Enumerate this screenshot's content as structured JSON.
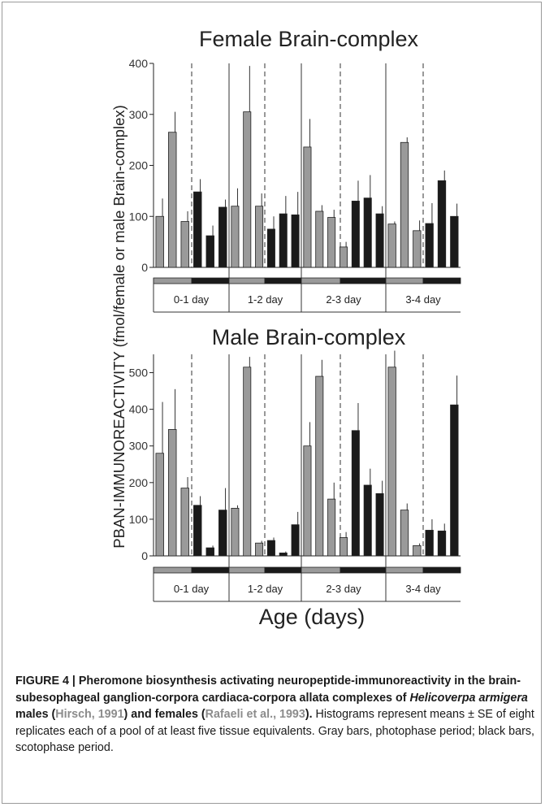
{
  "figure": {
    "y_axis_label": "PBAN-IMMUNOREACTIVITY (fmol/female or male Brain-complex)",
    "x_axis_label": "Age (days)",
    "colors": {
      "photophase": "#9a9a9a",
      "scotophase": "#1a1a1a",
      "axis": "#222222"
    }
  },
  "chart_data": [
    {
      "type": "bar",
      "title": "Female Brain-complex",
      "categories": [
        "0-1 day",
        "1-2 day",
        "2-3 day",
        "3-4 day"
      ],
      "ylim": [
        0,
        400
      ],
      "yticks": [
        0,
        100,
        200,
        300,
        400
      ],
      "values": [
        [
          100,
          265,
          90,
          148,
          62,
          118
        ],
        [
          120,
          305,
          120,
          75,
          105,
          103
        ],
        [
          236,
          110,
          98,
          40,
          130,
          136,
          105
        ],
        [
          85,
          245,
          72,
          86,
          170,
          100
        ]
      ],
      "errors": [
        [
          35,
          40,
          20,
          25,
          20,
          15
        ],
        [
          35,
          90,
          25,
          25,
          35,
          45
        ],
        [
          55,
          12,
          15,
          10,
          40,
          45,
          15
        ],
        [
          5,
          10,
          20,
          40,
          20,
          25
        ]
      ],
      "phase": [
        [
          "light",
          "light",
          "light",
          "dark",
          "dark",
          "dark"
        ],
        [
          "light",
          "light",
          "light",
          "dark",
          "dark",
          "dark"
        ],
        [
          "light",
          "light",
          "light",
          "light",
          "dark",
          "dark",
          "dark"
        ],
        [
          "light",
          "light",
          "light",
          "dark",
          "dark",
          "dark"
        ]
      ]
    },
    {
      "type": "bar",
      "title": "Male Brain-complex",
      "categories": [
        "0-1 day",
        "1-2 day",
        "2-3 day",
        "3-4 day"
      ],
      "ylim": [
        0,
        550
      ],
      "yticks": [
        0,
        100,
        200,
        300,
        400,
        500
      ],
      "values": [
        [
          280,
          345,
          185,
          138,
          22,
          125
        ],
        [
          130,
          515,
          35,
          42,
          8,
          85
        ],
        [
          300,
          490,
          155,
          50,
          342,
          193,
          170
        ],
        [
          515,
          125,
          28,
          70,
          68,
          412
        ]
      ],
      "errors": [
        [
          140,
          110,
          30,
          25,
          6,
          60
        ],
        [
          8,
          28,
          6,
          8,
          4,
          35
        ],
        [
          65,
          45,
          45,
          15,
          75,
          45,
          35
        ],
        [
          45,
          18,
          6,
          30,
          20,
          80
        ]
      ],
      "phase": [
        [
          "light",
          "light",
          "light",
          "dark",
          "dark",
          "dark"
        ],
        [
          "light",
          "light",
          "light",
          "dark",
          "dark",
          "dark"
        ],
        [
          "light",
          "light",
          "light",
          "light",
          "dark",
          "dark",
          "dark"
        ],
        [
          "light",
          "light",
          "light",
          "dark",
          "dark",
          "dark"
        ]
      ]
    }
  ],
  "caption": {
    "label": "FIGURE 4 | Pheromone biosynthesis activating neuropeptide-immunoreactivity in the brain-subesophageal ganglion-corpora cardiaca-corpora allata complexes of ",
    "species": "Helicoverpa armigera",
    "text_males": " males (",
    "ref1": "Hirsch, 1991",
    "text_females": ") and females (",
    "ref2": "Rafaeli et al., 1993",
    "text_end": ").",
    "body": "Histograms represent means ± SE of eight replicates each of a pool of at least five tissue equivalents. Gray bars, photophase period; black bars, scotophase period."
  }
}
